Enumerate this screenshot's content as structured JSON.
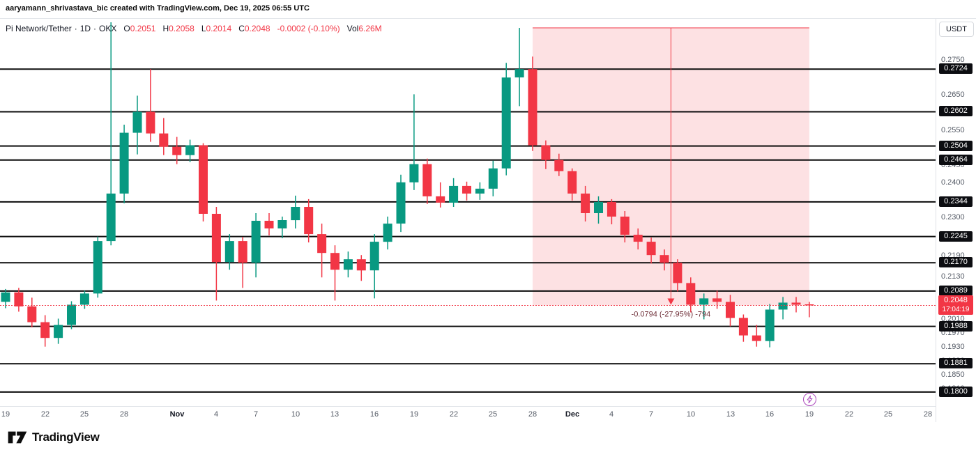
{
  "attribution": "aaryamann_shrivastava_bic created with TradingView.com, Dec 19, 2025 06:55 UTC",
  "legend": {
    "symbol": "Pi Network/Tether",
    "sep": "·",
    "interval": "1D",
    "exchange": "OKX",
    "ohlc": [
      {
        "label": "O",
        "value": "0.2051"
      },
      {
        "label": "H",
        "value": "0.2058"
      },
      {
        "label": "L",
        "value": "0.2014"
      },
      {
        "label": "C",
        "value": "0.2048"
      }
    ],
    "change": "-0.0002 (-0.10%)",
    "vol_label": "Vol",
    "vol_value": "6.26M"
  },
  "price_axis": {
    "currency_button": "USDT",
    "gray_labels": [
      0.275,
      0.265,
      0.255,
      0.245,
      0.24,
      0.23,
      0.219,
      0.213,
      0.207,
      0.201,
      0.197,
      0.193,
      0.189,
      0.185,
      0.181
    ],
    "current": {
      "price": "0.2048",
      "countdown": "17:04:19"
    }
  },
  "time_axis": {
    "labels": [
      {
        "text": "19",
        "day": 0
      },
      {
        "text": "22",
        "day": 3
      },
      {
        "text": "25",
        "day": 6
      },
      {
        "text": "28",
        "day": 9
      },
      {
        "text": "Nov",
        "day": 13,
        "bold": true
      },
      {
        "text": "4",
        "day": 16
      },
      {
        "text": "7",
        "day": 19
      },
      {
        "text": "10",
        "day": 22
      },
      {
        "text": "13",
        "day": 25
      },
      {
        "text": "16",
        "day": 28
      },
      {
        "text": "19",
        "day": 31
      },
      {
        "text": "22",
        "day": 34
      },
      {
        "text": "25",
        "day": 37
      },
      {
        "text": "28",
        "day": 40
      },
      {
        "text": "Dec",
        "day": 43,
        "bold": true
      },
      {
        "text": "4",
        "day": 46
      },
      {
        "text": "7",
        "day": 49
      },
      {
        "text": "10",
        "day": 52
      },
      {
        "text": "13",
        "day": 55
      },
      {
        "text": "16",
        "day": 58
      },
      {
        "text": "19",
        "day": 61
      },
      {
        "text": "22",
        "day": 64
      },
      {
        "text": "25",
        "day": 67
      },
      {
        "text": "28",
        "day": 70
      }
    ]
  },
  "footer": {
    "brand": "TradingView"
  },
  "colors": {
    "up": "#089981",
    "down": "#f23645",
    "level": "#0c0c0c",
    "region_fill": "rgba(242,54,69,0.15)",
    "region_line": "#f23645",
    "measure_text": "#6e2f38",
    "badge": "#0c0d11",
    "current_badge": "#f23645",
    "bolt": "#ab47bc"
  },
  "chart_data": {
    "type": "candlestick",
    "title": "Pi Network/Tether · 1D · OKX",
    "ylabel": "Price (USDT)",
    "price_range": {
      "min": 0.176,
      "max": 0.286
    },
    "start_day": -1,
    "current_price": 0.2048,
    "levels": [
      0.2724,
      0.2602,
      0.2504,
      0.2464,
      0.2344,
      0.2245,
      0.217,
      0.2089,
      0.1988,
      0.1881,
      0.18
    ],
    "measure": {
      "from_day": 40,
      "to_day": 61,
      "top_price": 0.2842,
      "bottom_price": 0.2048,
      "label": "-0.0794 (-27.95%) -794"
    },
    "candles": [
      [
        "Oct 18",
        0.202,
        0.207,
        0.2005,
        0.2058
      ],
      [
        "Oct 19",
        0.2058,
        0.2095,
        0.204,
        0.2085
      ],
      [
        "Oct 20",
        0.2085,
        0.2098,
        0.203,
        0.2045
      ],
      [
        "Oct 21",
        0.2045,
        0.207,
        0.1985,
        0.2
      ],
      [
        "Oct 22",
        0.2,
        0.202,
        0.193,
        0.1955
      ],
      [
        "Oct 23",
        0.1955,
        0.201,
        0.1938,
        0.1992
      ],
      [
        "Oct 24",
        0.1992,
        0.206,
        0.198,
        0.205
      ],
      [
        "Oct 25",
        0.205,
        0.209,
        0.2038,
        0.2082
      ],
      [
        "Oct 26",
        0.2082,
        0.2245,
        0.207,
        0.2232
      ],
      [
        "Oct 27",
        0.2232,
        0.2858,
        0.222,
        0.2368
      ],
      [
        "Oct 28",
        0.2368,
        0.2565,
        0.234,
        0.2542
      ],
      [
        "Oct 29",
        0.2542,
        0.2648,
        0.248,
        0.2602
      ],
      [
        "Oct 30",
        0.2602,
        0.2724,
        0.2516,
        0.254
      ],
      [
        "Oct 31",
        0.254,
        0.2584,
        0.2478,
        0.2502
      ],
      [
        "Nov 1",
        0.2502,
        0.253,
        0.2452,
        0.2478
      ],
      [
        "Nov 2",
        0.2478,
        0.2522,
        0.2458,
        0.2506
      ],
      [
        "Nov 3",
        0.2506,
        0.2512,
        0.2288,
        0.231
      ],
      [
        "Nov 4",
        0.231,
        0.233,
        0.2062,
        0.2172
      ],
      [
        "Nov 5",
        0.2172,
        0.2252,
        0.215,
        0.2232
      ],
      [
        "Nov 6",
        0.2232,
        0.2244,
        0.2098,
        0.217
      ],
      [
        "Nov 7",
        0.217,
        0.2312,
        0.2128,
        0.229
      ],
      [
        "Nov 8",
        0.229,
        0.2312,
        0.2248,
        0.2268
      ],
      [
        "Nov 9",
        0.2268,
        0.2302,
        0.224,
        0.2292
      ],
      [
        "Nov 10",
        0.2292,
        0.2362,
        0.2268,
        0.233
      ],
      [
        "Nov 11",
        0.233,
        0.2352,
        0.2228,
        0.2252
      ],
      [
        "Nov 12",
        0.2252,
        0.2282,
        0.2128,
        0.2198
      ],
      [
        "Nov 13",
        0.2198,
        0.222,
        0.2062,
        0.215
      ],
      [
        "Nov 14",
        0.215,
        0.2202,
        0.2128,
        0.218
      ],
      [
        "Nov 15",
        0.218,
        0.2192,
        0.2118,
        0.2148
      ],
      [
        "Nov 16",
        0.2148,
        0.2252,
        0.2068,
        0.223
      ],
      [
        "Nov 17",
        0.223,
        0.2302,
        0.2208,
        0.2282
      ],
      [
        "Nov 18",
        0.2282,
        0.2422,
        0.2258,
        0.24
      ],
      [
        "Nov 19",
        0.24,
        0.2652,
        0.2378,
        0.2452
      ],
      [
        "Nov 20",
        0.2452,
        0.2468,
        0.2338,
        0.236
      ],
      [
        "Nov 21",
        0.236,
        0.24,
        0.2328,
        0.2342
      ],
      [
        "Nov 22",
        0.2342,
        0.2412,
        0.233,
        0.239
      ],
      [
        "Nov 23",
        0.239,
        0.2402,
        0.2348,
        0.2368
      ],
      [
        "Nov 24",
        0.2368,
        0.24,
        0.235,
        0.2382
      ],
      [
        "Nov 25",
        0.2382,
        0.2462,
        0.236,
        0.244
      ],
      [
        "Nov 26",
        0.244,
        0.2742,
        0.242,
        0.27
      ],
      [
        "Nov 27",
        0.27,
        0.2842,
        0.2618,
        0.2724
      ],
      [
        "Nov 28",
        0.2724,
        0.276,
        0.249,
        0.2506
      ],
      [
        "Nov 29",
        0.2506,
        0.252,
        0.2438,
        0.2464
      ],
      [
        "Nov 30",
        0.2464,
        0.2482,
        0.2418,
        0.2432
      ],
      [
        "Dec 1",
        0.2432,
        0.244,
        0.2348,
        0.2368
      ],
      [
        "Dec 2",
        0.2368,
        0.239,
        0.2288,
        0.2312
      ],
      [
        "Dec 3",
        0.2312,
        0.236,
        0.2282,
        0.2344
      ],
      [
        "Dec 4",
        0.2344,
        0.2352,
        0.228,
        0.2302
      ],
      [
        "Dec 5",
        0.2302,
        0.2318,
        0.2228,
        0.225
      ],
      [
        "Dec 6",
        0.225,
        0.2268,
        0.2208,
        0.223
      ],
      [
        "Dec 7",
        0.223,
        0.2242,
        0.2168,
        0.2192
      ],
      [
        "Dec 8",
        0.2192,
        0.2208,
        0.2148,
        0.217
      ],
      [
        "Dec 9",
        0.217,
        0.218,
        0.2088,
        0.2112
      ],
      [
        "Dec 10",
        0.2112,
        0.2128,
        0.2028,
        0.205
      ],
      [
        "Dec 11",
        0.205,
        0.2082,
        0.2008,
        0.2068
      ],
      [
        "Dec 12",
        0.2068,
        0.209,
        0.2038,
        0.2058
      ],
      [
        "Dec 13",
        0.2058,
        0.2078,
        0.1988,
        0.2012
      ],
      [
        "Dec 14",
        0.2012,
        0.2022,
        0.1944,
        0.1962
      ],
      [
        "Dec 15",
        0.1962,
        0.1992,
        0.193,
        0.1946
      ],
      [
        "Dec 16",
        0.1946,
        0.2052,
        0.1928,
        0.2036
      ],
      [
        "Dec 17",
        0.2036,
        0.2072,
        0.2008,
        0.2056
      ],
      [
        "Dec 18",
        0.2056,
        0.2072,
        0.2028,
        0.205
      ],
      [
        "Dec 19",
        0.2051,
        0.2058,
        0.2014,
        0.2048
      ]
    ]
  }
}
